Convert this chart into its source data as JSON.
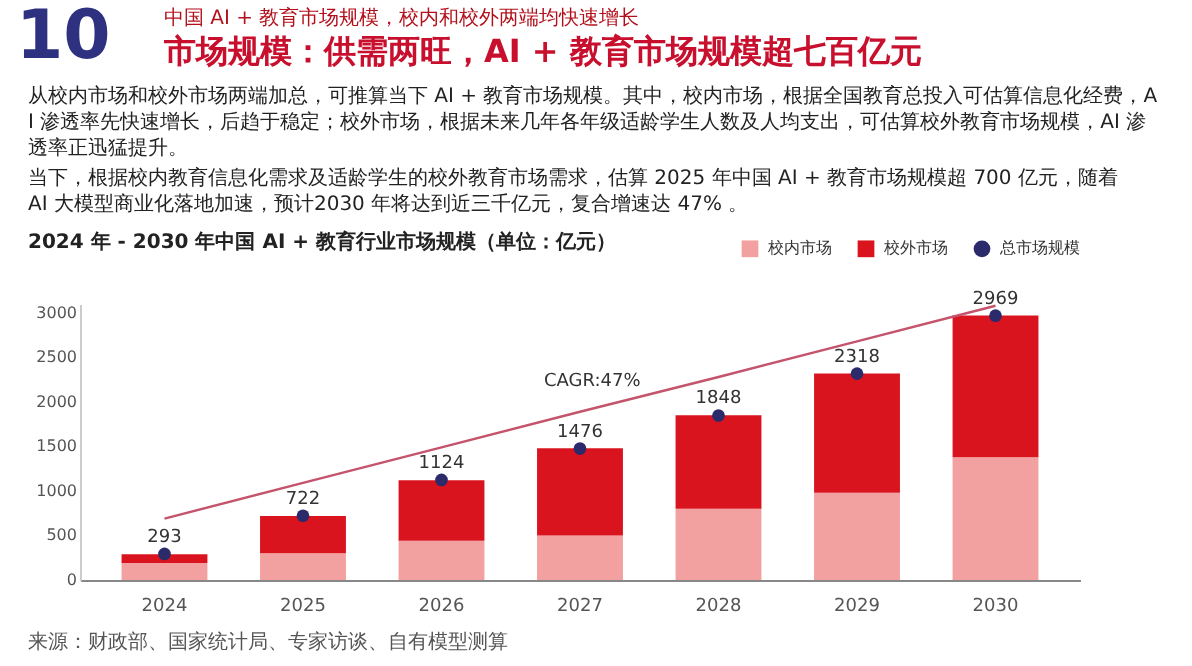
{
  "chart_data": {
    "type": "bar",
    "stacked": true,
    "title": "市场规模：供需两旺，AI + 教育市场规模超七百亿元",
    "subtitle": "中国 AI + 教育市场规模，校内和校外两端均快速增长",
    "annotations": [
      "10",
      "从校内市场和校外市场两端加总，可推算当下 AI + 教育市场规模。其中，校内市场，根据全国教育总投入可估算信息化经费，AI 渗透率先快速增长，后趋于稳定；校外市场，根据未来几年各年级适龄学生人数及人均支出，可估算校外教育市场规模，AI 渗透率正迅猛提升。",
      "当下，根据校内教育信息化需求及适龄学生的校外教育市场需求，估算 2025 年中国 AI + 教育市场规模超 700 亿元，随着 AI 大模型商业化落地加速，预计2030 年将达到近三千亿元，复合增速达 47% 。",
      "2024 年 - 2030 年中国 AI + 教育行业市场规模（单位：亿元）",
      "来源：财政部、国家统计局、专家访谈、自有模型测算",
      "CAGR:47%"
    ],
    "categories": [
      "2024",
      "2025",
      "2026",
      "2027",
      "2028",
      "2029",
      "2030"
    ],
    "series": [
      {
        "name": "校内市场",
        "color": "#f2a0a0",
        "values": [
          190,
          300,
          440,
          500,
          800,
          980,
          1380
        ]
      },
      {
        "name": "校外市场",
        "color": "#d9141e",
        "values": [
          100,
          420,
          680,
          980,
          1050,
          1340,
          1590
        ]
      },
      {
        "name": "总市场规模",
        "type": "scatter",
        "marker": "circle",
        "color": "#2b2a6b",
        "values": [
          293,
          722,
          1124,
          1476,
          1848,
          2318,
          2969
        ],
        "value_labels": [
          "293",
          "722",
          "1124",
          "1476",
          "1848",
          "2318",
          "2969"
        ]
      },
      {
        "type": "line",
        "color": "#c4536b",
        "values": [
          690,
          1090,
          1490,
          1890,
          2280,
          2680,
          3080
        ]
      }
    ],
    "ylim": [
      0,
      3100
    ],
    "yticks": [
      0,
      500,
      1000,
      1500,
      2000,
      2500,
      3000
    ],
    "grid": false,
    "legend": "top right"
  }
}
